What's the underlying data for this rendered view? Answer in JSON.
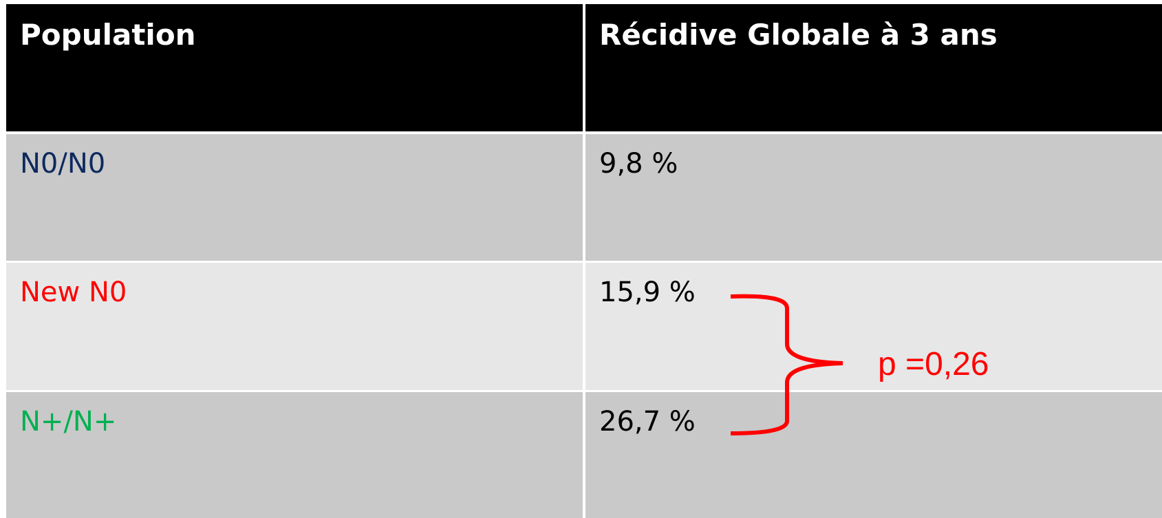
{
  "table": {
    "header": [
      "Population",
      "Récidive Globale à 3 ans"
    ],
    "rows": [
      [
        "N0/N0",
        "9,8 %"
      ],
      [
        "New N0",
        "15,9 %"
      ],
      [
        "N+/N+",
        "26,7 %"
      ]
    ]
  },
  "annotation": "p =0,26"
}
